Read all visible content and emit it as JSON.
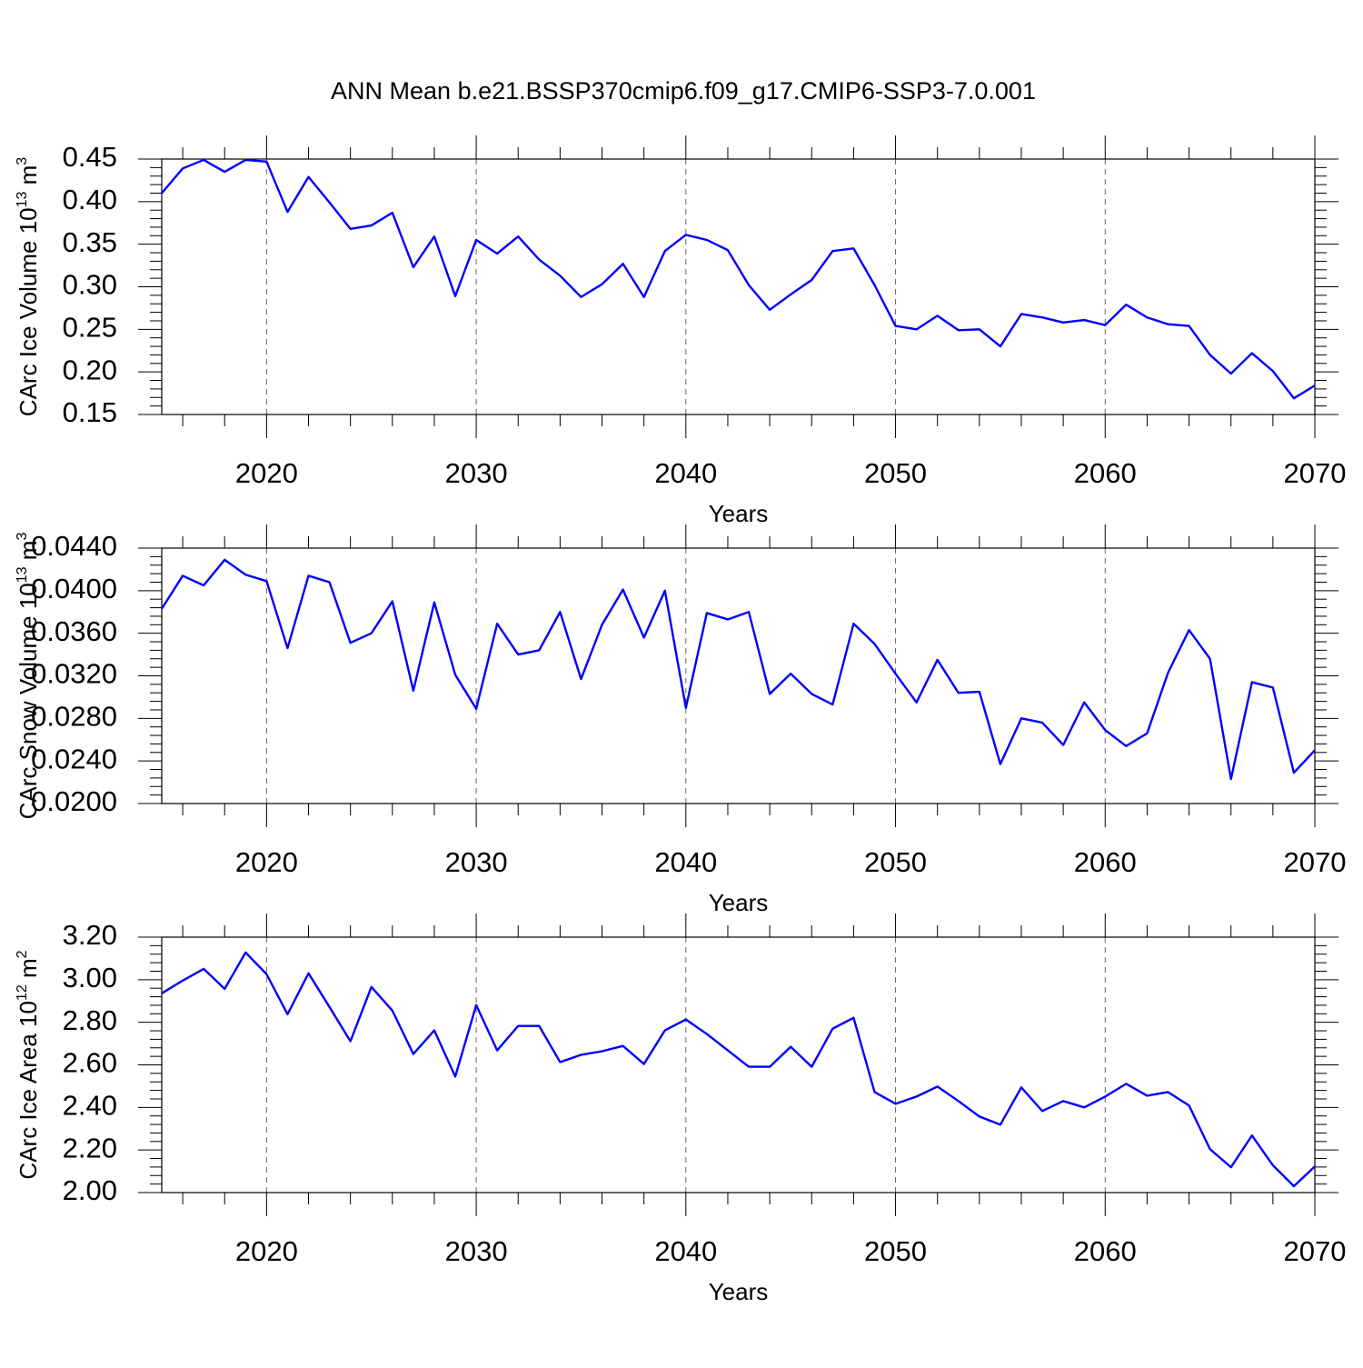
{
  "title": "ANN Mean b.e21.BSSP370cmip6.f09_g17.CMIP6-SSP3-7.0.001",
  "chart_data": [
    {
      "type": "line",
      "color": "#0000ff",
      "grid": true,
      "x_label": "Years",
      "y_label": {
        "text": "CArc Ice Volume 10",
        "exp": "13",
        "unit": " m",
        "unit_exp": "3"
      },
      "x": [
        2015,
        2016,
        2017,
        2018,
        2019,
        2020,
        2021,
        2022,
        2023,
        2024,
        2025,
        2026,
        2027,
        2028,
        2029,
        2030,
        2031,
        2032,
        2033,
        2034,
        2035,
        2036,
        2037,
        2038,
        2039,
        2040,
        2041,
        2042,
        2043,
        2044,
        2045,
        2046,
        2047,
        2048,
        2049,
        2050,
        2051,
        2052,
        2053,
        2054,
        2055,
        2056,
        2057,
        2058,
        2059,
        2060,
        2061,
        2062,
        2063,
        2064,
        2065,
        2066,
        2067,
        2068,
        2069,
        2070
      ],
      "values": [
        0.41,
        0.439,
        0.449,
        0.435,
        0.449,
        0.447,
        0.388,
        0.429,
        0.399,
        0.368,
        0.372,
        0.387,
        0.323,
        0.359,
        0.289,
        0.355,
        0.339,
        0.359,
        0.332,
        0.313,
        0.288,
        0.303,
        0.327,
        0.288,
        0.342,
        0.361,
        0.355,
        0.343,
        0.302,
        0.273,
        0.291,
        0.308,
        0.342,
        0.345,
        0.302,
        0.254,
        0.25,
        0.266,
        0.249,
        0.25,
        0.23,
        0.268,
        0.264,
        0.258,
        0.261,
        0.255,
        0.279,
        0.264,
        0.256,
        0.254,
        0.22,
        0.198,
        0.222,
        0.201,
        0.169,
        0.184
      ],
      "xlim": [
        2015,
        2070
      ],
      "xticks": [
        2020,
        2030,
        2040,
        2050,
        2060,
        2070
      ],
      "ylim": [
        0.15,
        0.45
      ],
      "yticks": [
        0.15,
        {
          "value": 0.2,
          "label": "0.20"
        },
        0.25,
        {
          "value": 0.3,
          "label": "0.30"
        },
        0.35,
        {
          "value": 0.4,
          "label": "0.40"
        },
        0.45
      ]
    },
    {
      "type": "line",
      "color": "#0000ff",
      "grid": true,
      "x_label": "Years",
      "y_label": {
        "text": "CArc Snow Volume 10",
        "exp": "13",
        "unit": " m",
        "unit_exp": "3"
      },
      "x": [
        2015,
        2016,
        2017,
        2018,
        2019,
        2020,
        2021,
        2022,
        2023,
        2024,
        2025,
        2026,
        2027,
        2028,
        2029,
        2030,
        2031,
        2032,
        2033,
        2034,
        2035,
        2036,
        2037,
        2038,
        2039,
        2040,
        2041,
        2042,
        2043,
        2044,
        2045,
        2046,
        2047,
        2048,
        2049,
        2050,
        2051,
        2052,
        2053,
        2054,
        2055,
        2056,
        2057,
        2058,
        2059,
        2060,
        2061,
        2062,
        2063,
        2064,
        2065,
        2066,
        2067,
        2068,
        2069,
        2070
      ],
      "values": [
        0.0383,
        0.0414,
        0.0405,
        0.0429,
        0.0415,
        0.0409,
        0.0346,
        0.0414,
        0.0408,
        0.0351,
        0.036,
        0.039,
        0.0306,
        0.0389,
        0.0321,
        0.0289,
        0.0369,
        0.034,
        0.0344,
        0.038,
        0.0317,
        0.0368,
        0.0401,
        0.0356,
        0.04,
        0.029,
        0.0379,
        0.0373,
        0.038,
        0.0303,
        0.0322,
        0.0303,
        0.0293,
        0.0369,
        0.035,
        0.0322,
        0.0295,
        0.0335,
        0.0304,
        0.0305,
        0.0237,
        0.028,
        0.0276,
        0.0255,
        0.0295,
        0.0269,
        0.0254,
        0.0266,
        0.0323,
        0.0363,
        0.0336,
        0.0223,
        0.0314,
        0.0309,
        0.0229,
        0.025
      ],
      "xlim": [
        2015,
        2070
      ],
      "xticks": [
        2020,
        2030,
        2040,
        2050,
        2060,
        2070
      ],
      "ylim": [
        0.02,
        0.044
      ],
      "yticks": [
        {
          "value": 0.02,
          "label": "0.0200"
        },
        {
          "value": 0.024,
          "label": "0.0240"
        },
        {
          "value": 0.028,
          "label": "0.0280"
        },
        {
          "value": 0.032,
          "label": "0.0320"
        },
        {
          "value": 0.036,
          "label": "0.0360"
        },
        {
          "value": 0.04,
          "label": "0.0400"
        },
        {
          "value": 0.044,
          "label": "0.0440"
        }
      ]
    },
    {
      "type": "line",
      "color": "#0000ff",
      "grid": true,
      "x_label": "Years",
      "y_label": {
        "text": "CArc Ice Area 10",
        "exp": "12",
        "unit": " m",
        "unit_exp": "2"
      },
      "x": [
        2015,
        2016,
        2017,
        2018,
        2019,
        2020,
        2021,
        2022,
        2023,
        2024,
        2025,
        2026,
        2027,
        2028,
        2029,
        2030,
        2031,
        2032,
        2033,
        2034,
        2035,
        2036,
        2037,
        2038,
        2039,
        2040,
        2041,
        2042,
        2043,
        2044,
        2045,
        2046,
        2047,
        2048,
        2049,
        2050,
        2051,
        2052,
        2053,
        2054,
        2055,
        2056,
        2057,
        2058,
        2059,
        2060,
        2061,
        2062,
        2063,
        2064,
        2065,
        2066,
        2067,
        2068,
        2069,
        2070
      ],
      "values": [
        2.936,
        2.996,
        3.051,
        2.957,
        3.128,
        3.026,
        2.838,
        3.03,
        2.872,
        2.711,
        2.966,
        2.855,
        2.651,
        2.762,
        2.545,
        2.881,
        2.668,
        2.783,
        2.783,
        2.613,
        2.647,
        2.664,
        2.689,
        2.604,
        2.762,
        2.813,
        2.745,
        2.668,
        2.591,
        2.591,
        2.685,
        2.591,
        2.77,
        2.821,
        2.472,
        2.417,
        2.451,
        2.498,
        2.43,
        2.357,
        2.319,
        2.494,
        2.383,
        2.43,
        2.4,
        2.451,
        2.511,
        2.455,
        2.472,
        2.409,
        2.204,
        2.119,
        2.268,
        2.128,
        2.03,
        2.123
      ],
      "xlim": [
        2015,
        2070
      ],
      "xticks": [
        2020,
        2030,
        2040,
        2050,
        2060,
        2070
      ],
      "ylim": [
        2.0,
        3.2
      ],
      "yticks": [
        {
          "value": 2.0,
          "label": "2.00"
        },
        {
          "value": 2.2,
          "label": "2.20"
        },
        {
          "value": 2.4,
          "label": "2.40"
        },
        {
          "value": 2.6,
          "label": "2.60"
        },
        {
          "value": 2.8,
          "label": "2.80"
        },
        {
          "value": 3.0,
          "label": "3.00"
        },
        {
          "value": 3.2,
          "label": "3.20"
        }
      ]
    }
  ]
}
